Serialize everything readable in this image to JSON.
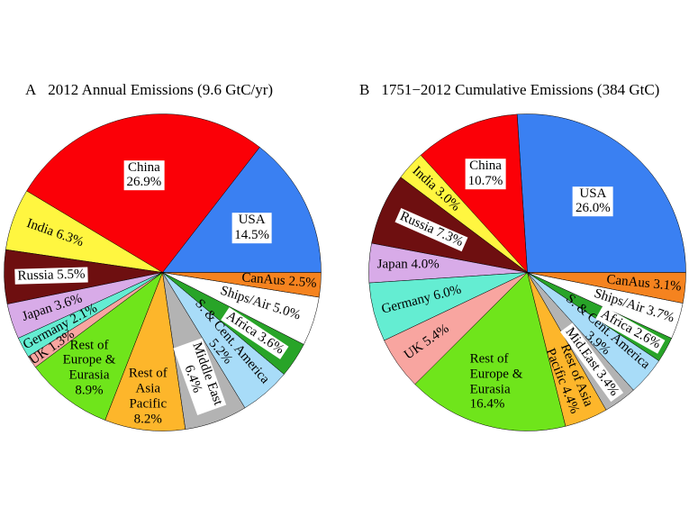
{
  "figure_background": "#ffffff",
  "chart_data": [
    {
      "type": "pie",
      "id": "annual-2012",
      "title": "A  2012 Annual Emissions (9.6 GtC/yr)",
      "title_letter": "A",
      "title_text": "2012 Annual Emissions (9.6 GtC/yr)",
      "total_label": "9.6 GtC/yr",
      "start_angle_deg": 0,
      "direction": "counterclockwise",
      "legend": "none",
      "slices": [
        {
          "name": "USA",
          "pct": 14.5,
          "color": "#3A80F2",
          "label_lines": [
            "USA",
            "14.5%"
          ],
          "label_mode": "horizontal",
          "label_r": 0.63,
          "boxed": true
        },
        {
          "name": "China",
          "pct": 26.9,
          "color": "#FB0007",
          "label_lines": [
            "China",
            "26.9%"
          ],
          "label_mode": "horizontal",
          "label_r": 0.62,
          "boxed": true
        },
        {
          "name": "India",
          "pct": 6.3,
          "color": "#FFF640",
          "label_lines": [
            "India 6.3%"
          ],
          "label_mode": "rotated",
          "label_r": 0.72,
          "boxed": false
        },
        {
          "name": "Russia",
          "pct": 5.5,
          "color": "#6E0F10",
          "label_lines": [
            "Russia 5.5%"
          ],
          "label_mode": "rotated",
          "label_r": 0.7,
          "boxed": true
        },
        {
          "name": "Japan",
          "pct": 3.6,
          "color": "#D8ABE8",
          "label_lines": [
            "Japan 3.6%"
          ],
          "label_mode": "rotated",
          "label_r": 0.73,
          "boxed": false
        },
        {
          "name": "Germany",
          "pct": 2.1,
          "color": "#64EDD2",
          "label_lines": [
            "Germany 2.1%"
          ],
          "label_mode": "rotated",
          "label_r": 0.73,
          "boxed": false
        },
        {
          "name": "UK",
          "pct": 1.3,
          "color": "#F8A5A0",
          "label_lines": [
            "UK 1.3%"
          ],
          "label_mode": "rotated",
          "label_r": 0.84,
          "boxed": false
        },
        {
          "name": "Rest of Europe & Eurasia",
          "pct": 8.9,
          "color": "#6FE51B",
          "label_lines": [
            "Rest of",
            "Europe &",
            "Eurasia",
            "8.9%"
          ],
          "label_mode": "horizontal",
          "label_r": 0.76,
          "boxed": false
        },
        {
          "name": "Rest of Asia Pacific",
          "pct": 8.2,
          "color": "#FDB62B",
          "label_lines": [
            "Rest of",
            "Asia",
            "Pacific",
            "8.2%"
          ],
          "label_mode": "horizontal",
          "label_r": 0.79,
          "boxed": false
        },
        {
          "name": "Middle East",
          "pct": 6.4,
          "color": "#B3B3B3",
          "label_lines": [
            "Middle East",
            "6.4%"
          ],
          "label_mode": "rotated",
          "label_r": 0.7,
          "boxed": true
        },
        {
          "name": "S. & Cent. America",
          "pct": 5.2,
          "color": "#A8DCF8",
          "label_lines": [
            "S. & Cent. America",
            "5.2%"
          ],
          "label_mode": "rotated",
          "label_r": 0.62,
          "boxed": false
        },
        {
          "name": "Africa",
          "pct": 3.6,
          "color": "#28A428",
          "label_lines": [
            "Africa 3.6%"
          ],
          "label_mode": "rotated",
          "label_r": 0.7,
          "boxed": true
        },
        {
          "name": "Ships/Air",
          "pct": 5.0,
          "color": "#FFFFFF",
          "label_lines": [
            "Ships/Air 5.0%"
          ],
          "label_mode": "rotated",
          "label_r": 0.65,
          "boxed": false
        },
        {
          "name": "CanAus",
          "pct": 2.5,
          "color": "#F5831F",
          "label_lines": [
            "CanAus 2.5%"
          ],
          "label_mode": "rotated",
          "label_r": 0.74,
          "boxed": false
        }
      ]
    },
    {
      "type": "pie",
      "id": "cumulative-1751-2012",
      "title": "B  1751−2012 Cumulative Emissions (384 GtC)",
      "title_letter": "B",
      "title_text": "1751−2012 Cumulative Emissions (384 GtC)",
      "total_label": "384 GtC",
      "start_angle_deg": 0,
      "direction": "counterclockwise",
      "legend": "none",
      "slices": [
        {
          "name": "USA",
          "pct": 26.0,
          "color": "#3A80F2",
          "label_lines": [
            "USA",
            "26.0%"
          ],
          "label_mode": "horizontal",
          "label_r": 0.61,
          "boxed": true
        },
        {
          "name": "China",
          "pct": 10.7,
          "color": "#FB0007",
          "label_lines": [
            "China",
            "10.7%"
          ],
          "label_mode": "horizontal",
          "label_r": 0.67,
          "boxed": true
        },
        {
          "name": "India",
          "pct": 3.0,
          "color": "#FFF640",
          "label_lines": [
            "India 3.0%"
          ],
          "label_mode": "rotated",
          "label_r": 0.78,
          "boxed": false
        },
        {
          "name": "Russia",
          "pct": 7.3,
          "color": "#6E0F10",
          "label_lines": [
            "Russia 7.3%"
          ],
          "label_mode": "rotated",
          "label_r": 0.66,
          "boxed": true
        },
        {
          "name": "Japan",
          "pct": 4.0,
          "color": "#D8ABE8",
          "label_lines": [
            "Japan 4.0%"
          ],
          "label_mode": "horizontal",
          "label_r": 0.75,
          "boxed": false
        },
        {
          "name": "Germany",
          "pct": 6.0,
          "color": "#64EDD2",
          "label_lines": [
            "Germany 6.0%"
          ],
          "label_mode": "rotated",
          "label_r": 0.69,
          "boxed": false
        },
        {
          "name": "UK",
          "pct": 5.4,
          "color": "#F8A5A0",
          "label_lines": [
            "UK 5.4%"
          ],
          "label_mode": "rotated",
          "label_r": 0.77,
          "boxed": false
        },
        {
          "name": "Rest of Europe & Eurasia",
          "pct": 16.4,
          "color": "#6FE51B",
          "label_lines": [
            "Rest of",
            "Europe &",
            "Eurasia",
            "16.4%"
          ],
          "label_mode": "horizontal",
          "label_r": 0.72,
          "boxed": false,
          "align": "left"
        },
        {
          "name": "Rest of Asia Pacific",
          "pct": 4.4,
          "color": "#FDB62B",
          "label_lines": [
            "Rest of Asia",
            "Pacific 4.4%"
          ],
          "label_mode": "rotated",
          "label_r": 0.72,
          "boxed": false
        },
        {
          "name": "Mid.East",
          "pct": 3.4,
          "color": "#B3B3B3",
          "label_lines": [
            "Mid.East 3.4%"
          ],
          "label_mode": "rotated",
          "label_r": 0.7,
          "boxed": true
        },
        {
          "name": "S. & Cent. America",
          "pct": 3.9,
          "color": "#A8DCF8",
          "label_lines": [
            "S. & Cent. America",
            "3.9%"
          ],
          "label_mode": "rotated",
          "label_r": 0.63,
          "boxed": false
        },
        {
          "name": "Africa",
          "pct": 2.6,
          "color": "#28A428",
          "label_lines": [
            "Africa 2.6%"
          ],
          "label_mode": "rotated",
          "label_r": 0.75,
          "boxed": true
        },
        {
          "name": "Ships/Air",
          "pct": 3.7,
          "color": "#FFFFFF",
          "label_lines": [
            "Ships/Air 3.7%"
          ],
          "label_mode": "rotated",
          "label_r": 0.71,
          "boxed": false
        },
        {
          "name": "CanAus",
          "pct": 3.1,
          "color": "#F5831F",
          "label_lines": [
            "CanAus 3.1%"
          ],
          "label_mode": "rotated",
          "label_r": 0.74,
          "boxed": false
        }
      ]
    }
  ]
}
